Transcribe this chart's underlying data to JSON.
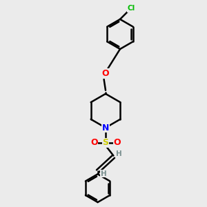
{
  "background_color": "#ebebeb",
  "bond_color": "#000000",
  "line_width": 1.8,
  "atom_colors": {
    "N": "#0000ff",
    "O": "#ff0000",
    "S": "#cccc00",
    "Cl": "#00bb00",
    "H": "#7a9090",
    "C": "#000000"
  },
  "font_size_large": 9,
  "font_size_small": 7.5
}
